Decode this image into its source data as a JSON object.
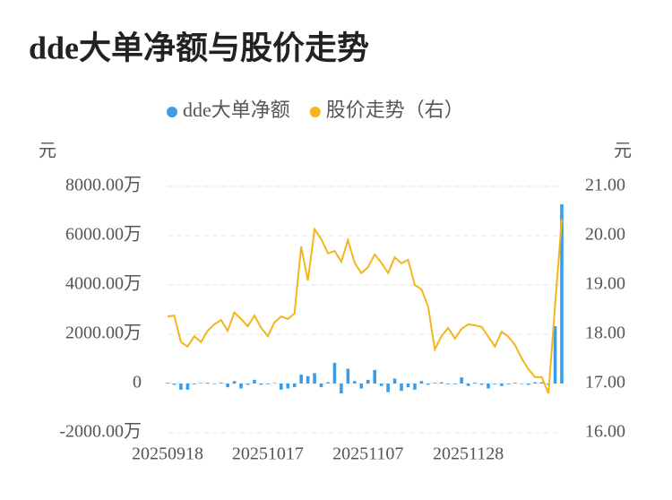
{
  "chart_data": {
    "type": "bar-line",
    "title": "dde大单净额与股价走势",
    "y_axis_label": "元",
    "y2_axis_label": "元",
    "categories": [
      "20250918",
      null,
      null,
      null,
      null,
      null,
      null,
      null,
      null,
      null,
      null,
      null,
      null,
      null,
      null,
      "20251017",
      null,
      null,
      null,
      null,
      null,
      null,
      null,
      null,
      null,
      null,
      null,
      null,
      null,
      null,
      "20251107",
      null,
      null,
      null,
      null,
      null,
      null,
      null,
      null,
      null,
      null,
      null,
      null,
      null,
      null,
      "20251128",
      null,
      null,
      null,
      null,
      null,
      null,
      null,
      null,
      null,
      null,
      null,
      null,
      null,
      null
    ],
    "series": [
      {
        "name": "dde大单净额",
        "type": "bar",
        "color": "#3a9de6",
        "values": [
          30,
          -50,
          -250,
          -250,
          -30,
          20,
          30,
          -20,
          30,
          -150,
          100,
          -200,
          -50,
          150,
          -50,
          -30,
          20,
          -250,
          -200,
          -150,
          360,
          300,
          420,
          -150,
          50,
          840,
          -400,
          600,
          100,
          -200,
          150,
          550,
          -100,
          -350,
          200,
          -300,
          -150,
          -250,
          100,
          -50,
          30,
          50,
          -30,
          -30,
          250,
          -100,
          30,
          -50,
          -200,
          -30,
          -100,
          -30,
          30,
          -20,
          -50,
          50,
          50,
          -50,
          2330,
          7270
        ]
      },
      {
        "name": "股价走势（右）",
        "type": "line",
        "axis": "y2",
        "color": "#f3b51c",
        "values": [
          18.36,
          18.38,
          17.84,
          17.75,
          17.96,
          17.84,
          18.07,
          18.2,
          18.29,
          18.07,
          18.44,
          18.31,
          18.16,
          18.38,
          18.13,
          17.96,
          18.24,
          18.36,
          18.31,
          18.42,
          19.78,
          19.09,
          20.13,
          19.93,
          19.64,
          19.69,
          19.47,
          19.91,
          19.45,
          19.24,
          19.36,
          19.62,
          19.45,
          19.24,
          19.56,
          19.44,
          19.51,
          19.0,
          18.91,
          18.56,
          17.69,
          17.96,
          18.13,
          17.91,
          18.11,
          18.2,
          18.18,
          18.15,
          17.95,
          17.75,
          18.05,
          17.95,
          17.78,
          17.51,
          17.29,
          17.13,
          17.13,
          16.8,
          18.6,
          20.33
        ]
      }
    ],
    "ylim": [
      -2000,
      8000
    ],
    "yticks": [
      {
        "value": -2000,
        "label": "-2000.00万"
      },
      0,
      {
        "value": 2000,
        "label": "2000.00万"
      },
      {
        "value": 4000,
        "label": "4000.00万"
      },
      {
        "value": 6000,
        "label": "6000.00万"
      },
      {
        "value": 8000,
        "label": "8000.00万"
      }
    ],
    "y2lim": [
      16,
      21
    ],
    "y2ticks": [
      {
        "value": 16,
        "label": "16.00"
      },
      {
        "value": 17,
        "label": "17.00"
      },
      {
        "value": 18,
        "label": "18.00"
      },
      {
        "value": 19,
        "label": "19.00"
      },
      {
        "value": 20,
        "label": "20.00"
      },
      {
        "value": 21,
        "label": "21.00"
      }
    ],
    "grid": true
  }
}
